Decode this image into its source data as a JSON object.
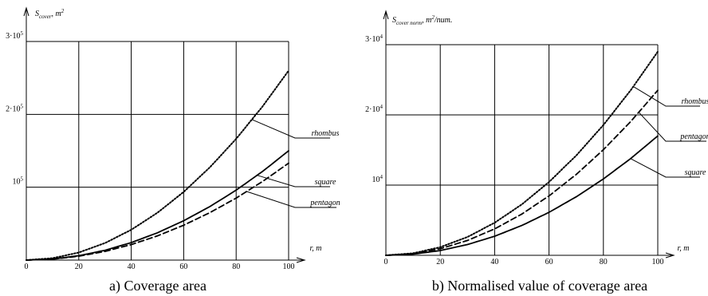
{
  "chart_data": [
    {
      "type": "line",
      "caption": "a) Coverage area",
      "ylabel_main": "S",
      "ylabel_sub": "cover",
      "ylabel_rest": ", m",
      "ylabel_sup": "2",
      "xlabel": "r, m",
      "xlim": [
        0,
        100
      ],
      "ylim": [
        0,
        300000
      ],
      "x_ticks": [
        0,
        20,
        40,
        60,
        80,
        100
      ],
      "y_ticks": [
        {
          "value": 100000,
          "base": "10",
          "exp": "5"
        },
        {
          "value": 200000,
          "base": "2·10",
          "exp": "5"
        },
        {
          "value": 300000,
          "base": "3·10",
          "exp": "5"
        }
      ],
      "grid": true,
      "x": [
        0,
        10,
        20,
        30,
        40,
        50,
        60,
        70,
        80,
        90,
        100
      ],
      "series": [
        {
          "name": "rhombus",
          "style": "dotted",
          "values": [
            0,
            2600,
            10400,
            23400,
            41600,
            65000,
            93600,
            127400,
            166400,
            210600,
            260000
          ],
          "label_x": 86
        },
        {
          "name": "square",
          "style": "solid",
          "values": [
            0,
            1500,
            6000,
            13500,
            24000,
            37500,
            54000,
            73500,
            96000,
            121500,
            150000
          ],
          "label_x": 88
        },
        {
          "name": "pentagon",
          "style": "dashed",
          "values": [
            0,
            1330,
            5320,
            11970,
            21280,
            33250,
            47880,
            65170,
            85120,
            107730,
            133000
          ],
          "label_x": 84
        }
      ]
    },
    {
      "type": "line",
      "caption": "b) Normalised value of coverage area",
      "ylabel_main": "S",
      "ylabel_sub": "cover norm",
      "ylabel_rest": ", m",
      "ylabel_sup": "2",
      "ylabel_tail": "/num.",
      "xlabel": "r, m",
      "xlim": [
        0,
        100
      ],
      "ylim": [
        0,
        30000
      ],
      "x_ticks": [
        0,
        20,
        40,
        60,
        80,
        100
      ],
      "y_ticks": [
        {
          "value": 10000,
          "base": "10",
          "exp": "4"
        },
        {
          "value": 20000,
          "base": "2·10",
          "exp": "4"
        },
        {
          "value": 30000,
          "base": "3·10",
          "exp": "4"
        }
      ],
      "grid": true,
      "x": [
        0,
        10,
        20,
        30,
        40,
        50,
        60,
        70,
        80,
        90,
        100
      ],
      "series": [
        {
          "name": "rhombus",
          "style": "dotted",
          "values": [
            0,
            290,
            1160,
            2610,
            4640,
            7250,
            10440,
            14210,
            18560,
            23490,
            29000
          ],
          "label_x": 91
        },
        {
          "name": "pentagon",
          "style": "dashed",
          "values": [
            0,
            235,
            940,
            2115,
            3760,
            5875,
            8460,
            11515,
            15040,
            19035,
            23500
          ],
          "label_x": 93
        },
        {
          "name": "square",
          "style": "solid",
          "values": [
            0,
            170,
            680,
            1530,
            2720,
            4250,
            6120,
            8330,
            10880,
            13770,
            17000
          ],
          "label_x": 90
        }
      ]
    }
  ]
}
